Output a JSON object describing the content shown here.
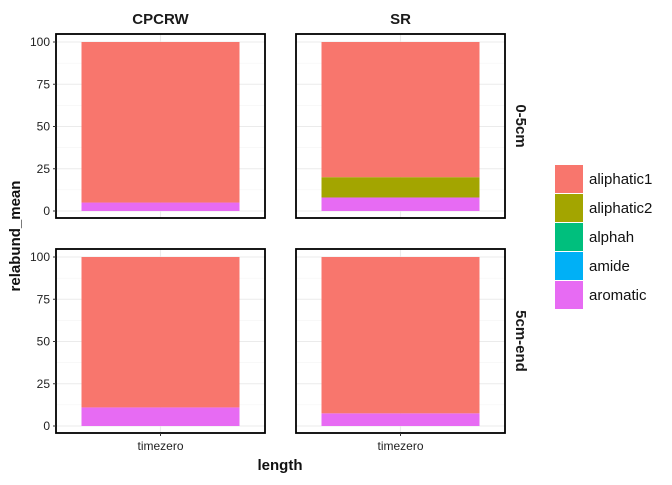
{
  "chart_data": {
    "type": "bar",
    "stacked": true,
    "facet_columns": [
      "CPCRW",
      "SR"
    ],
    "facet_rows": [
      "0-5cm",
      "5cm-end"
    ],
    "categories": [
      "timezero"
    ],
    "xlabel": "length",
    "ylabel": "relabund_mean",
    "ylim": [
      0,
      100
    ],
    "yticks": [
      "0",
      "25",
      "50",
      "75",
      "100"
    ],
    "grid": true,
    "legend_position": "right",
    "legend": [
      {
        "name": "aliphatic1",
        "color": "#F8766D"
      },
      {
        "name": "aliphatic2",
        "color": "#A3A500"
      },
      {
        "name": "alphah",
        "color": "#00BF7D"
      },
      {
        "name": "amide",
        "color": "#00B0F6"
      },
      {
        "name": "aromatic",
        "color": "#E76BF3"
      }
    ],
    "panels": [
      {
        "column": "CPCRW",
        "row": "0-5cm",
        "category": "timezero",
        "values": {
          "aromatic": 5,
          "amide": 0,
          "alphah": 0,
          "aliphatic2": 0,
          "aliphatic1": 95
        }
      },
      {
        "column": "SR",
        "row": "0-5cm",
        "category": "timezero",
        "values": {
          "aromatic": 8,
          "amide": 0,
          "alphah": 0,
          "aliphatic2": 12,
          "aliphatic1": 80
        }
      },
      {
        "column": "CPCRW",
        "row": "5cm-end",
        "category": "timezero",
        "values": {
          "aromatic": 11,
          "amide": 0,
          "alphah": 0,
          "aliphatic2": 0,
          "aliphatic1": 89
        }
      },
      {
        "column": "SR",
        "row": "5cm-end",
        "category": "timezero",
        "values": {
          "aromatic": 7.5,
          "amide": 0,
          "alphah": 0,
          "aliphatic2": 0,
          "aliphatic1": 92.5
        }
      }
    ]
  }
}
